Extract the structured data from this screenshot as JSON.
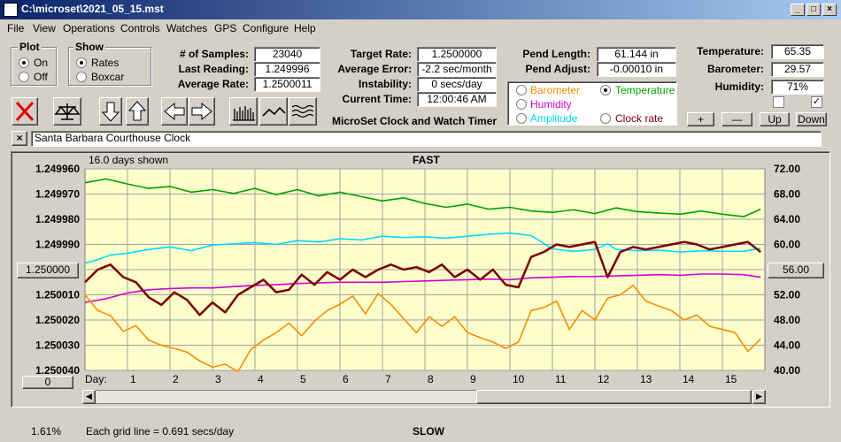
{
  "window": {
    "title": "C:\\microset\\2021_05_15.mst",
    "min_glyph": "_",
    "max_glyph": "□",
    "close_glyph": "×"
  },
  "menu": [
    "File",
    "View",
    "Operations",
    "Controls",
    "Watches",
    "GPS",
    "Configure",
    "Help"
  ],
  "plot": {
    "label": "Plot",
    "on": "On",
    "off": "Off",
    "selected": "On"
  },
  "show": {
    "label": "Show",
    "rates": "Rates",
    "boxcar": "Boxcar",
    "selected": "Rates"
  },
  "stats": {
    "samples_label": "# of Samples:",
    "samples": "23040",
    "last_label": "Last Reading:",
    "last": "1.249996",
    "avg_label": "Average Rate:",
    "avg": "1.2500011"
  },
  "target": {
    "rate_label": "Target Rate:",
    "rate": "1.2500000",
    "error_label": "Average Error:",
    "error": "-2.2 sec/month",
    "instab_label": "Instability:",
    "instab": "0 secs/day",
    "time_label": "Current Time:",
    "time": "12:00:46 AM"
  },
  "pend": {
    "length_label": "Pend Length:",
    "length": "61.144 in",
    "adjust_label": "Pend Adjust:",
    "adjust": "-0.00010 in"
  },
  "env": {
    "temp_label": "Temperature:",
    "temp": "65.35",
    "baro_label": "Barometer:",
    "baro": "29.57",
    "hum_label": "Humidity:",
    "hum": "71%"
  },
  "sensors": {
    "barometer": "Barometer",
    "temperature": "Temperature",
    "humidity": "Humidity",
    "amplitude": "Amplitude",
    "clock_rate": "Clock rate",
    "selected": "Temperature"
  },
  "app_name": "MicroSet Clock and Watch Timer",
  "adjust_buttons": {
    "plus": "+",
    "minus": "—",
    "up": "Up",
    "down": "Down"
  },
  "watch_name": "Santa Barbara Courthouse Clock",
  "colors": {
    "barometer": "#ff8c00",
    "temperature": "#00a000",
    "humidity": "#d000d0",
    "amplitude": "#00d8ff",
    "clock_rate": "#7a0000",
    "plot_bg": "#ffffcc"
  },
  "chart_data": {
    "type": "line",
    "title_top": "FAST",
    "title_bottom": "SLOW",
    "days_shown": "16.0 days shown",
    "x_label": "Day:",
    "x_ticks": [
      "1",
      "2",
      "3",
      "4",
      "5",
      "6",
      "7",
      "8",
      "9",
      "10",
      "11",
      "12",
      "13",
      "14",
      "15"
    ],
    "y_left_ticks": [
      "1.249960",
      "1.249970",
      "1.249980",
      "1.249990",
      "1.250000",
      "1.250010",
      "1.250020",
      "1.250030",
      "1.250040"
    ],
    "y_left_range": [
      1.24996,
      1.25004
    ],
    "y_right_ticks": [
      "72.00",
      "68.00",
      "64.00",
      "60.00",
      "56.00",
      "52.00",
      "48.00",
      "44.00",
      "40.00"
    ],
    "y_right_range": [
      40,
      72
    ],
    "x_range": [
      0,
      16
    ],
    "left_button": "1.250000",
    "right_button": "56.00",
    "bottom_left_button": "0",
    "grid_note": "Each grid line = 0.691 secs/day",
    "grid": true,
    "series": [
      {
        "name": "Temperature",
        "color": "#00a000",
        "x": [
          0,
          0.5,
          1,
          1.5,
          2,
          2.5,
          3,
          3.5,
          4,
          4.5,
          5,
          5.5,
          6,
          6.5,
          7,
          7.5,
          8,
          8.5,
          9,
          9.5,
          10,
          10.5,
          11,
          11.5,
          12,
          12.5,
          13,
          13.5,
          14,
          14.5,
          15,
          15.5,
          15.9
        ],
        "y": [
          69.8,
          70.4,
          69.6,
          68.9,
          69.2,
          68.3,
          68.7,
          68.1,
          68.9,
          67.9,
          68.7,
          67.7,
          68.3,
          67.6,
          66.9,
          67.4,
          66.5,
          65.9,
          66.4,
          65.6,
          65.9,
          65.3,
          65.1,
          65.5,
          64.9,
          65.8,
          65.2,
          65.0,
          64.8,
          65.3,
          64.8,
          64.4,
          65.6
        ]
      },
      {
        "name": "Amplitude",
        "color": "#00d8ff",
        "x": [
          0,
          0.3,
          0.6,
          1,
          1.5,
          2,
          2.5,
          3,
          3.5,
          4,
          4.5,
          5,
          5.5,
          6,
          6.5,
          7,
          7.5,
          8,
          8.5,
          9,
          9.5,
          10,
          10.5,
          11,
          11.5,
          12,
          12.3,
          12.5,
          13,
          13.5,
          14,
          14.5,
          15,
          15.5,
          15.9
        ],
        "y": [
          57.0,
          57.6,
          58.3,
          58.6,
          59.2,
          59.6,
          59.0,
          59.9,
          60.1,
          60.3,
          60.0,
          60.6,
          60.4,
          60.9,
          60.7,
          61.3,
          61.1,
          61.2,
          61.0,
          61.3,
          61.6,
          61.8,
          61.4,
          59.3,
          58.9,
          59.2,
          60.1,
          59.2,
          59.0,
          59.1,
          58.8,
          59.0,
          58.9,
          58.9,
          59.4
        ]
      },
      {
        "name": "Humidity",
        "color": "#d000d0",
        "x": [
          0,
          0.5,
          1,
          1.5,
          2,
          2.5,
          3,
          3.5,
          4,
          4.5,
          5,
          5.5,
          6,
          6.5,
          7,
          7.5,
          8,
          8.5,
          9,
          9.5,
          10,
          10.5,
          11,
          11.5,
          12,
          12.5,
          13,
          13.5,
          14,
          14.5,
          15,
          15.5,
          15.9
        ],
        "y": [
          50.8,
          51.4,
          52.3,
          52.8,
          53.0,
          53.1,
          53.1,
          53.3,
          53.5,
          53.6,
          53.8,
          53.9,
          54.0,
          54.0,
          54.0,
          54.1,
          54.2,
          54.3,
          54.4,
          54.5,
          54.4,
          54.7,
          54.8,
          54.9,
          54.9,
          55.0,
          55.1,
          55.2,
          55.1,
          55.3,
          55.3,
          55.2,
          54.8
        ]
      },
      {
        "name": "Barometer",
        "color": "#ff8c00",
        "x": [
          0,
          0.3,
          0.6,
          0.9,
          1.2,
          1.5,
          1.8,
          2.1,
          2.4,
          2.7,
          3.0,
          3.3,
          3.6,
          3.9,
          4.2,
          4.5,
          4.8,
          5.1,
          5.4,
          5.7,
          6.0,
          6.3,
          6.6,
          6.9,
          7.2,
          7.5,
          7.8,
          8.1,
          8.4,
          8.7,
          9.0,
          9.3,
          9.6,
          9.9,
          10.2,
          10.5,
          10.8,
          11.1,
          11.4,
          11.7,
          12.0,
          12.3,
          12.6,
          12.9,
          13.2,
          13.5,
          13.8,
          14.1,
          14.4,
          14.7,
          15.0,
          15.3,
          15.6,
          15.9
        ],
        "y": [
          52.0,
          49.5,
          48.7,
          46.2,
          47.1,
          44.8,
          44.0,
          43.5,
          42.9,
          41.5,
          40.5,
          41.0,
          39.8,
          43.3,
          44.8,
          46.0,
          47.5,
          45.5,
          47.8,
          49.5,
          50.5,
          51.8,
          49.0,
          52.2,
          50.5,
          48.2,
          46.0,
          48.5,
          47.0,
          48.5,
          46.0,
          45.2,
          44.5,
          43.5,
          44.5,
          49.5,
          50.0,
          51.0,
          46.5,
          49.5,
          48.0,
          51.5,
          52.0,
          53.5,
          51.0,
          50.2,
          49.5,
          48.0,
          48.8,
          47.0,
          46.5,
          46.0,
          43.0,
          45.0
        ]
      },
      {
        "name": "Clock rate",
        "color": "#7a0000",
        "x": [
          0,
          0.3,
          0.6,
          0.9,
          1.2,
          1.5,
          1.8,
          2.1,
          2.4,
          2.7,
          3.0,
          3.3,
          3.6,
          3.9,
          4.2,
          4.5,
          4.8,
          5.1,
          5.4,
          5.7,
          6.0,
          6.3,
          6.6,
          6.9,
          7.2,
          7.5,
          7.8,
          8.1,
          8.4,
          8.7,
          9.0,
          9.3,
          9.6,
          9.9,
          10.2,
          10.5,
          10.8,
          11.1,
          11.4,
          11.7,
          12.0,
          12.3,
          12.6,
          12.9,
          13.2,
          13.5,
          13.8,
          14.1,
          14.4,
          14.7,
          15.0,
          15.3,
          15.6,
          15.9
        ],
        "y": [
          1.250005,
          1.25,
          1.249998,
          1.250003,
          1.250005,
          1.250011,
          1.250014,
          1.250009,
          1.250012,
          1.250018,
          1.250013,
          1.250017,
          1.25001,
          1.250007,
          1.250004,
          1.250009,
          1.250008,
          1.250002,
          1.250006,
          1.250001,
          1.250004,
          1.25,
          1.250003,
          1.25,
          1.249998,
          1.25,
          1.249999,
          1.250001,
          1.249998,
          1.250003,
          1.25,
          1.250004,
          1.25,
          1.250006,
          1.250007,
          1.249995,
          1.249993,
          1.24999,
          1.249991,
          1.24999,
          1.249989,
          1.250003,
          1.249993,
          1.249991,
          1.249992,
          1.249991,
          1.24999,
          1.249989,
          1.24999,
          1.249992,
          1.249991,
          1.24999,
          1.249989,
          1.249993
        ]
      }
    ]
  },
  "status": {
    "percent": "1.61%"
  }
}
